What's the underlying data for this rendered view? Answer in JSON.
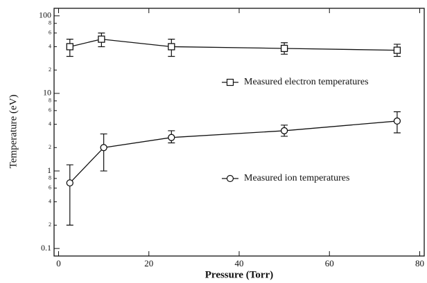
{
  "chart_data": {
    "type": "line",
    "x_label": "Pressure (Torr)",
    "y_label": "Temperature (eV)",
    "xlim": [
      -1,
      81
    ],
    "xticks": [
      0,
      20,
      40,
      60,
      80
    ],
    "ylim": [
      0.08,
      125
    ],
    "log_y": true,
    "yticks": [
      {
        "value": 0.1,
        "label": "0.1"
      },
      {
        "value": 0.2,
        "label": "2"
      },
      {
        "value": 0.4,
        "label": "4"
      },
      {
        "value": 0.6,
        "label": "6"
      },
      {
        "value": 0.8,
        "label": "8"
      },
      1,
      {
        "value": 2,
        "label": "2"
      },
      {
        "value": 4,
        "label": "4"
      },
      {
        "value": 6,
        "label": "6"
      },
      {
        "value": 8,
        "label": "8"
      },
      10,
      {
        "value": 20,
        "label": "2"
      },
      {
        "value": 40,
        "label": "4"
      },
      {
        "value": 60,
        "label": "6"
      },
      {
        "value": 80,
        "label": "8"
      },
      100
    ],
    "series": [
      {
        "name": "Measured electron temperatures",
        "marker": "square",
        "color": "#111111",
        "x": [
          2.5,
          9.5,
          25,
          50,
          75
        ],
        "values": [
          40,
          50,
          40,
          38,
          36
        ],
        "err_low": [
          30,
          40,
          30,
          32,
          30
        ],
        "err_high": [
          50,
          60,
          50,
          45,
          43
        ]
      },
      {
        "name": "Measured ion temperatures",
        "marker": "circle",
        "color": "#111111",
        "x": [
          2.5,
          10,
          25,
          50,
          75
        ],
        "values": [
          0.7,
          2.0,
          2.7,
          3.3,
          4.4
        ],
        "err_low": [
          0.2,
          1.0,
          2.3,
          2.8,
          3.1
        ],
        "err_high": [
          1.2,
          3.0,
          3.3,
          3.9,
          5.8
        ]
      }
    ]
  }
}
